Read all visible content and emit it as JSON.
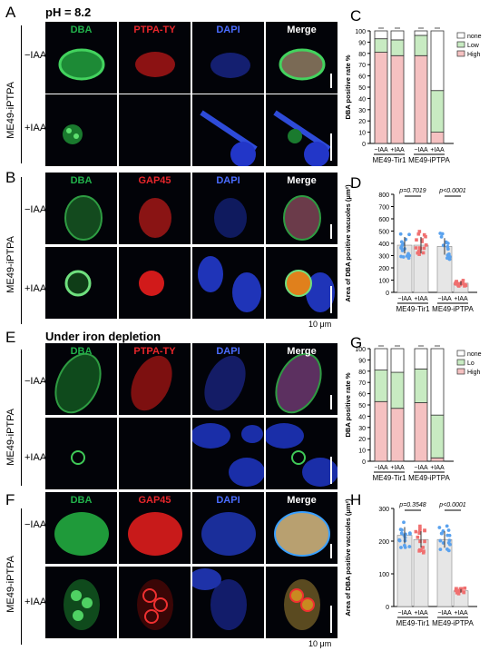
{
  "panels": {
    "A": {
      "letter": "A",
      "note": "pH = 8.2",
      "strain": "ME49-iPTPA",
      "row1": "−IAA",
      "row2": "+IAA",
      "cols": [
        "DBA",
        "PTPA-TY",
        "DAPI",
        "Merge"
      ]
    },
    "B": {
      "letter": "B",
      "strain": "ME49-iPTPA",
      "row1": "−IAA",
      "row2": "+IAA",
      "cols": [
        "DBA",
        "GAP45",
        "DAPI",
        "Merge"
      ],
      "scale": "10 μm"
    },
    "E": {
      "letter": "E",
      "note": "Under iron depletion",
      "strain": "ME49-iPTPA",
      "row1": "−IAA",
      "row2": "+IAA",
      "cols": [
        "DBA",
        "PTPA-TY",
        "DAPI",
        "Merge"
      ]
    },
    "F": {
      "letter": "F",
      "strain": "ME49-iPTPA",
      "row1": "−IAA",
      "row2": "+IAA",
      "cols": [
        "DBA",
        "GAP45",
        "DAPI",
        "Merge"
      ],
      "scale": "10 μm"
    },
    "C": {
      "letter": "C"
    },
    "D": {
      "letter": "D"
    },
    "G": {
      "letter": "G"
    },
    "H": {
      "letter": "H"
    }
  },
  "colors": {
    "dba": "#21b24b",
    "red": "#e8262b",
    "dapi": "#4a6cff",
    "merge": "#ffffff",
    "high": "#f5c1c1",
    "low": "#c8ebc2",
    "none": "#ffffff",
    "dot_blue": "#5aa2ee",
    "dot_red": "#f07070",
    "bar_gray": "#e6e6e6"
  },
  "chart_data": [
    {
      "id": "C",
      "type": "bar",
      "stacked": true,
      "ylabel": "DBA positive rate %",
      "ylim": [
        0,
        100
      ],
      "yticks": [
        0,
        10,
        20,
        30,
        40,
        50,
        60,
        70,
        80,
        90,
        100
      ],
      "categories": [
        "−IAA",
        "+IAA",
        "−IAA",
        "+IAA"
      ],
      "groups": [
        "ME49-Tir1",
        "ME49-iPTPA"
      ],
      "legend": [
        "none",
        "Low",
        "High"
      ],
      "series": [
        {
          "name": "High",
          "values": [
            81,
            78,
            78,
            10
          ]
        },
        {
          "name": "Low",
          "values": [
            12,
            14,
            18,
            37
          ]
        },
        {
          "name": "none",
          "values": [
            7,
            8,
            4,
            53
          ]
        }
      ]
    },
    {
      "id": "D",
      "type": "bar",
      "ylabel": "Area of DBA positive vacuoles (μm²)",
      "ylim": [
        0,
        800
      ],
      "yticks": [
        0,
        100,
        200,
        300,
        400,
        500,
        600,
        700,
        800
      ],
      "categories": [
        "−IAA",
        "+IAA",
        "−IAA",
        "+IAA"
      ],
      "groups": [
        "ME49-Tir1",
        "ME49-iPTPA"
      ],
      "values": [
        385,
        385,
        375,
        75
      ],
      "pvalues": [
        "p=0.7019",
        "p<0.0001"
      ]
    },
    {
      "id": "G",
      "type": "bar",
      "stacked": true,
      "ylabel": "DBA positive rate %",
      "ylim": [
        0,
        100
      ],
      "yticks": [
        0,
        10,
        20,
        30,
        40,
        50,
        60,
        70,
        80,
        90,
        100
      ],
      "categories": [
        "−IAA",
        "+IAA",
        "−IAA",
        "+IAA"
      ],
      "groups": [
        "ME49-Tir1",
        "ME49-iPTPA"
      ],
      "legend": [
        "none",
        "Lo",
        "High"
      ],
      "series": [
        {
          "name": "High",
          "values": [
            53,
            47,
            52,
            3
          ]
        },
        {
          "name": "Low",
          "values": [
            28,
            32,
            30,
            38
          ]
        },
        {
          "name": "none",
          "values": [
            19,
            21,
            18,
            59
          ]
        }
      ]
    },
    {
      "id": "H",
      "type": "bar",
      "ylabel": "Area of DBA positive vacuoles (μm²)",
      "ylim": [
        0,
        300
      ],
      "yticks": [
        0,
        100,
        200,
        300
      ],
      "categories": [
        "−IAA",
        "+IAA",
        "−IAA",
        "+IAA"
      ],
      "groups": [
        "ME49-Tir1",
        "ME49-iPTPA"
      ],
      "values": [
        218,
        205,
        205,
        48
      ],
      "pvalues": [
        "p=0.3548",
        "p<0.0001"
      ]
    }
  ]
}
